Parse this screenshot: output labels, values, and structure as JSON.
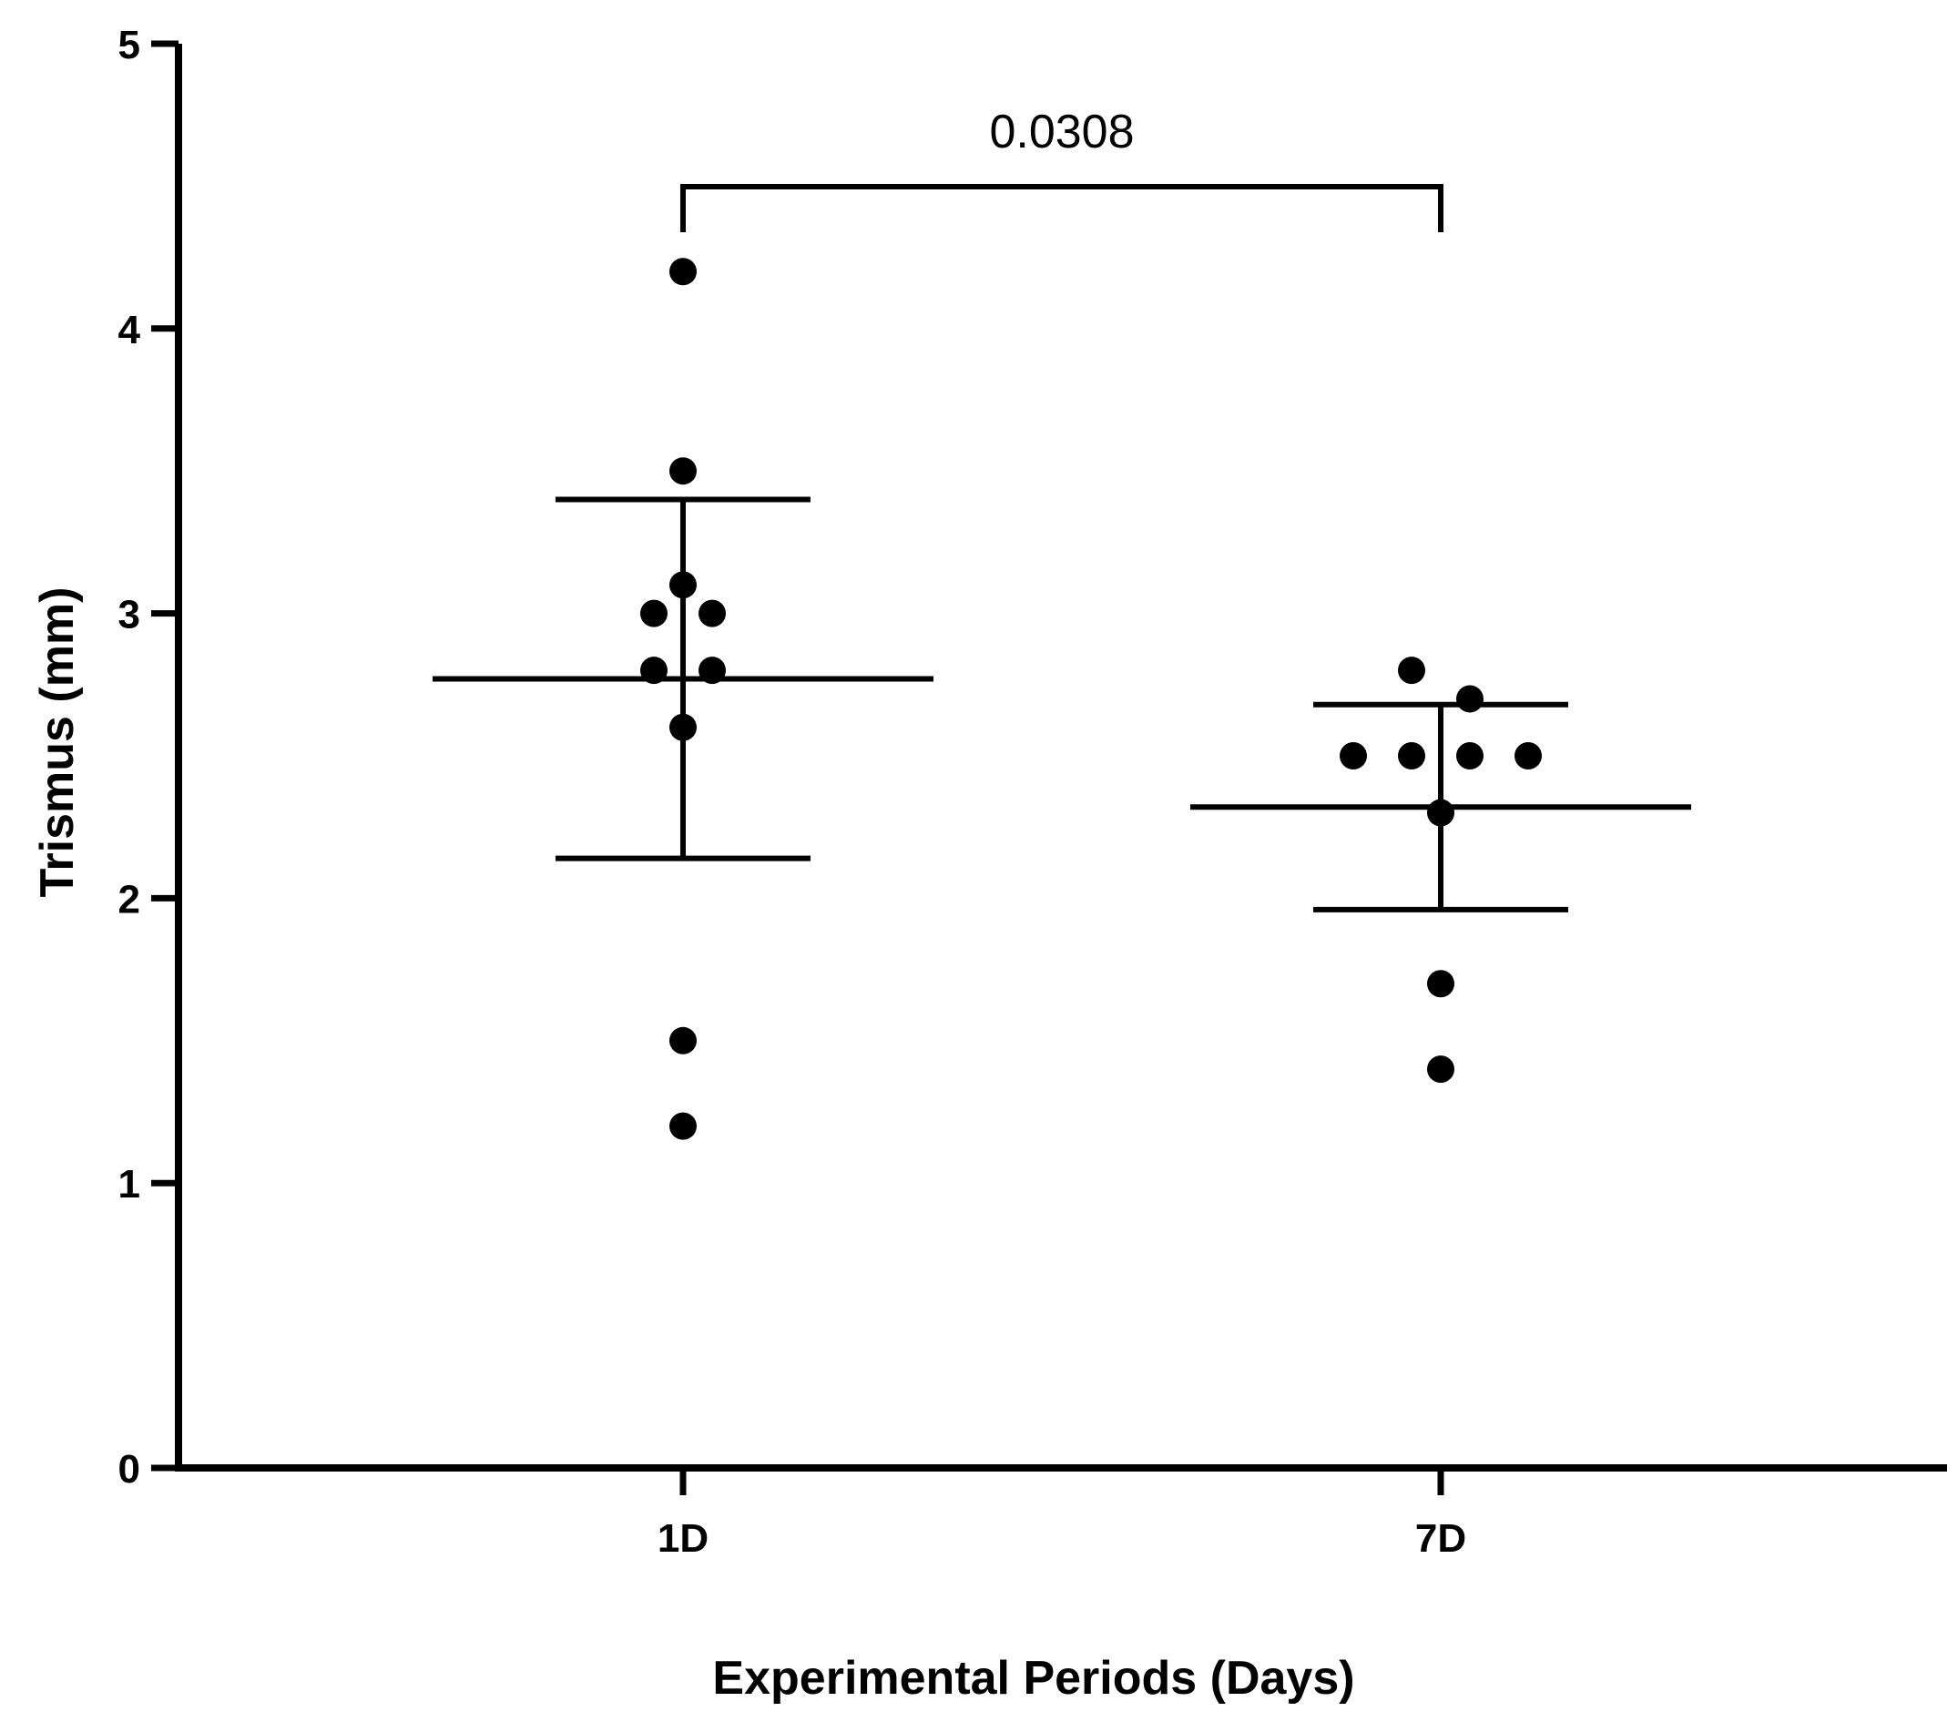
{
  "chart_data": {
    "type": "scatter",
    "subtype": "dot-plot-with-mean-and-sd",
    "title": "",
    "xlabel": "Experimental Periods (Days)",
    "ylabel": "Trismus  (mm)",
    "ylim": [
      0,
      5
    ],
    "y_ticks": [
      "0",
      "1",
      "2",
      "3",
      "4",
      "5"
    ],
    "categories": [
      "1D",
      "7D"
    ],
    "grid": false,
    "series": [
      {
        "name": "1D",
        "values": [
          4.2,
          3.5,
          3.1,
          3.0,
          3.0,
          2.8,
          2.8,
          2.6,
          1.5,
          1.2
        ],
        "mean": 2.77,
        "sd_upper": 3.4,
        "sd_lower": 2.14
      },
      {
        "name": "7D",
        "values": [
          2.8,
          2.7,
          2.5,
          2.5,
          2.5,
          2.5,
          2.3,
          1.7,
          1.4
        ],
        "mean": 2.32,
        "sd_upper": 2.68,
        "sd_lower": 1.96
      }
    ],
    "annotations": [
      {
        "type": "significance-bracket",
        "from": "1D",
        "to": "7D",
        "text": "0.0308"
      }
    ],
    "colors": {
      "marks": "#000000",
      "background": "#ffffff"
    }
  }
}
